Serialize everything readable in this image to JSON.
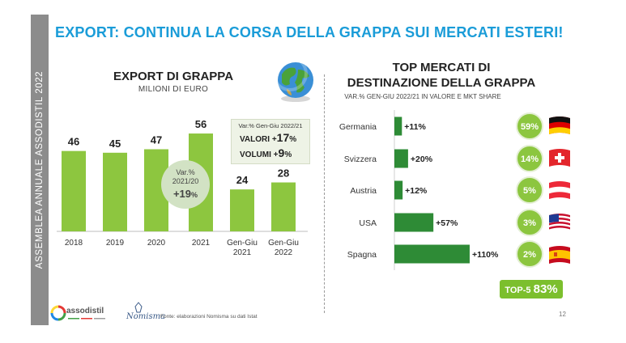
{
  "sidebar": {
    "text": "ASSEMBLEA  ANNUALE ASSODISTIL 2022"
  },
  "main_title": "EXPORT: CONTINUA LA CORSA DELLA GRAPPA SUI MERCATI ESTERI!",
  "left_chart": {
    "title": "EXPORT DI GRAPPA",
    "subtitle": "MILIONI DI EURO"
  },
  "value_box": {
    "header": "Var.% Gen-Giu 2022/21",
    "valori_label": "VALORI +",
    "valori_value": "17",
    "volumi_label": "VOLUMI +",
    "volumi_value": "9",
    "pct": "%"
  },
  "bubble": {
    "line1": "Var.%",
    "line2": "2021/20",
    "line3": "+19",
    "pct": "%"
  },
  "right_chart": {
    "title_line1": "TOP MERCATI DI",
    "title_line2": "DESTINAZIONE DELLA GRAPPA",
    "subtitle": "VAR.% GEN-GIU 2022/21 IN VALORE E MKT SHARE"
  },
  "top5": {
    "label": "TOP-5 ",
    "value": "83%"
  },
  "footer": {
    "source": "Fonte: elaborazioni Nomisma su dati Istat",
    "page": "12",
    "logo1": "assodistil",
    "logo2": "Nomisma"
  },
  "icons": {
    "globe": "globe-icon"
  },
  "colors": {
    "bar_light": "#8dc63f",
    "bar_dark": "#2e8b36",
    "accent_blue": "#1a9cd8",
    "share_circle": "#8cc63f"
  },
  "chart_data": [
    {
      "type": "bar",
      "title": "EXPORT DI GRAPPA",
      "subtitle": "MILIONI DI EURO",
      "categories": [
        "2018",
        "2019",
        "2020",
        "2021",
        "Gen-Giu\n2021",
        "Gen-Giu\n2022"
      ],
      "values": [
        46,
        45,
        47,
        56,
        24,
        28
      ],
      "ylim": [
        0,
        60
      ],
      "xlabel": "",
      "ylabel": ""
    },
    {
      "type": "bar",
      "orientation": "horizontal",
      "title": "TOP MERCATI DI DESTINAZIONE DELLA GRAPPA",
      "subtitle": "VAR.% GEN-GIU 2022/21 IN VALORE E MKT SHARE",
      "categories": [
        "Germania",
        "Svizzera",
        "Austria",
        "USA",
        "Spagna"
      ],
      "values": [
        11,
        20,
        12,
        57,
        110
      ],
      "value_labels": [
        "+11%",
        "+20%",
        "+12%",
        "+57%",
        "+110%"
      ],
      "market_share": [
        "59%",
        "14%",
        "5%",
        "3%",
        "2%"
      ],
      "flags": [
        "germany-flag-icon",
        "switzerland-flag-icon",
        "austria-flag-icon",
        "usa-flag-icon",
        "spain-flag-icon"
      ],
      "xlim": [
        0,
        110
      ]
    }
  ]
}
